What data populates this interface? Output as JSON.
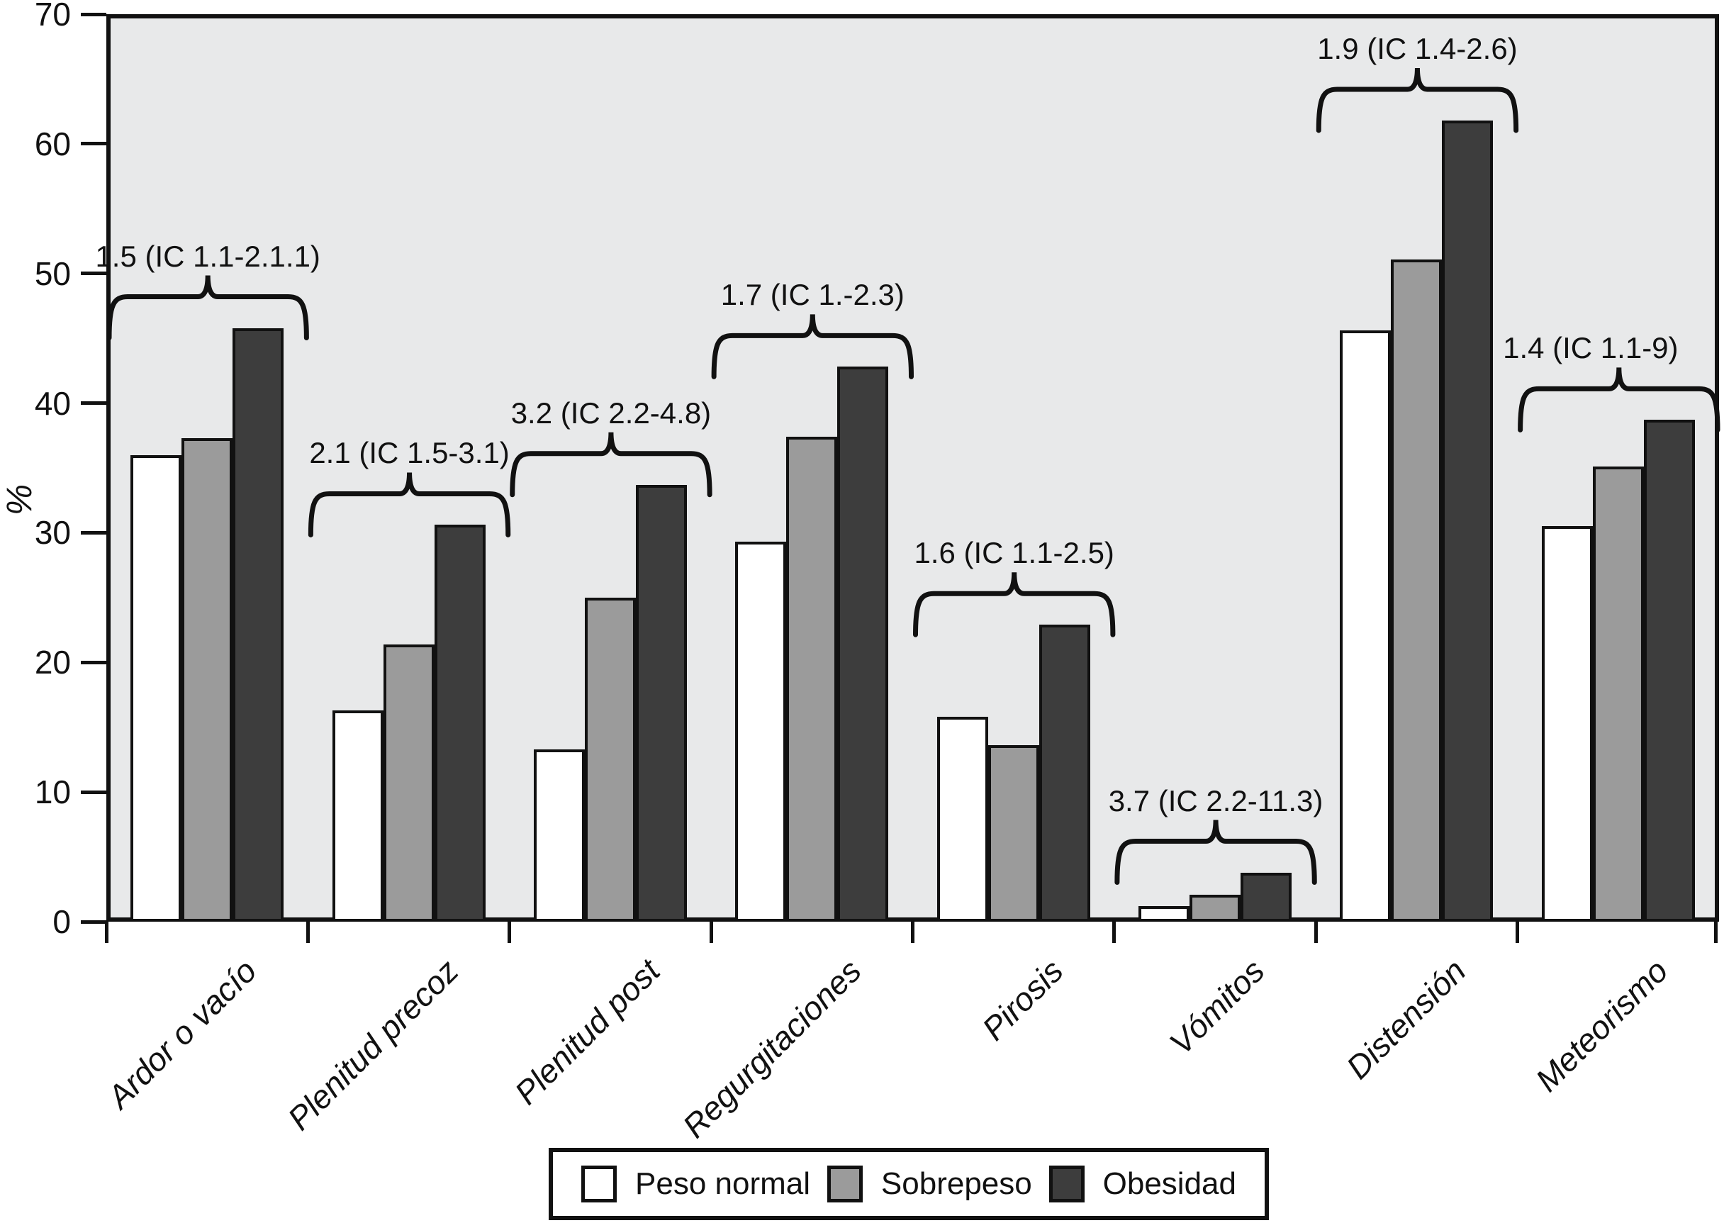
{
  "chart_data": {
    "type": "bar",
    "title": "",
    "ylabel": "%",
    "xlabel": "",
    "ylim": [
      0,
      70
    ],
    "yticks": [
      0,
      10,
      20,
      30,
      40,
      50,
      60,
      70
    ],
    "grid": false,
    "plot_background": "#e8e9ea",
    "legend_position": "bottom",
    "categories": [
      "Ardor o vacío",
      "Plenitud precoz",
      "Plenitud post",
      "Regurgitaciones",
      "Pirosis",
      "Vómitos",
      "Distensión",
      "Meteorismo"
    ],
    "series": [
      {
        "name": "Peso normal",
        "color": "#ffffff",
        "values": [
          36.0,
          16.3,
          13.3,
          29.3,
          15.8,
          1.2,
          45.6,
          30.5
        ]
      },
      {
        "name": "Sobrepeso",
        "color": "#9b9b9b",
        "values": [
          37.3,
          21.4,
          25.0,
          37.4,
          13.6,
          2.1,
          51.1,
          35.1
        ]
      },
      {
        "name": "Obesidad",
        "color": "#3d3d3d",
        "values": [
          45.8,
          30.6,
          33.7,
          42.8,
          22.9,
          3.8,
          61.8,
          38.7
        ]
      }
    ],
    "annotations": [
      "1.5 (IC 1.1-2.1.1)",
      "2.1 (IC 1.5-3.1)",
      "3.2 (IC 2.2-4.8)",
      "1.7 (IC 1.-2.3)",
      "1.6 (IC 1.1-2.5)",
      "3.7 (IC 2.2-11.3)",
      "1.9 (IC 1.4-2.6)",
      "1.4 (IC 1.1-9)"
    ]
  },
  "y_axis": {
    "label": "%"
  },
  "legend": {
    "items": [
      {
        "label": "Peso normal",
        "color": "#ffffff"
      },
      {
        "label": "Sobrepeso",
        "color": "#9b9b9b"
      },
      {
        "label": "Obesidad",
        "color": "#3d3d3d"
      }
    ]
  },
  "colors": {
    "axis": "#111111",
    "plot_background": "#e8e9ea",
    "bar_normal": "#ffffff",
    "bar_sobrepeso": "#9b9b9b",
    "bar_obesidad": "#3d3d3d"
  }
}
